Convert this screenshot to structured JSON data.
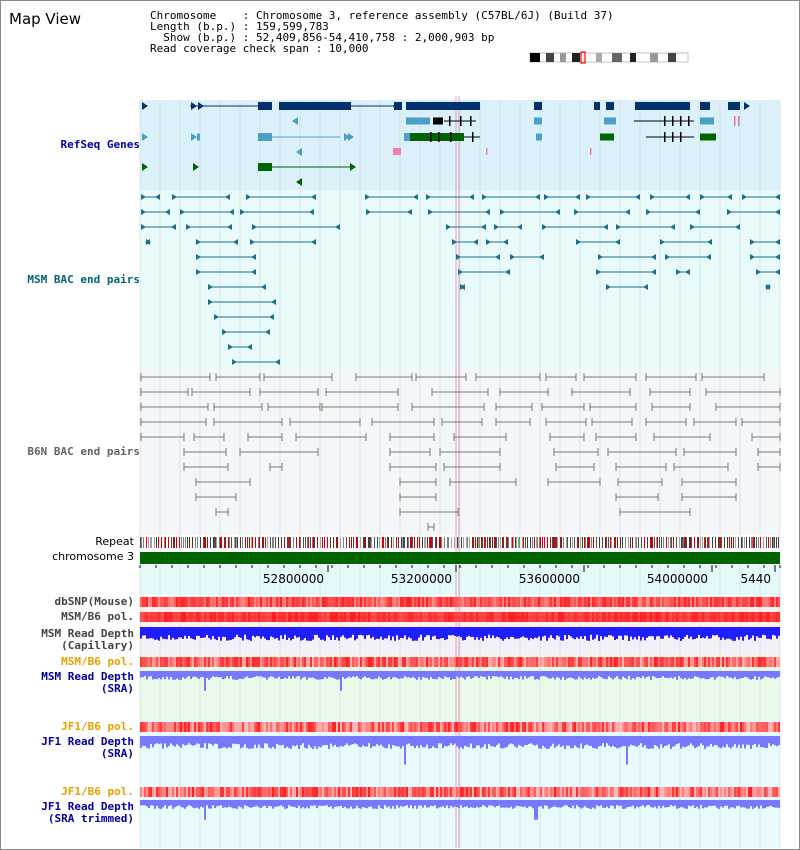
{
  "header": {
    "title": "Map View",
    "chromosome_line": "Chromosome    : Chromosome 3, reference assembly (C57BL/6J) (Build 37)",
    "length_line": "Length (b.p.) : 159,599,783",
    "show_line": "  Show (b.p.) : 52,409,856-54,410,758 : 2,000,903 bp",
    "coverage_line": "Read coverage check span : 10,000"
  },
  "tracks": {
    "refseq": "RefSeq Genes",
    "msm_bac": "MSM BAC end pairs",
    "b6n_bac": "B6N BAC end pairs",
    "repeat": "Repeat",
    "chromosome": "chromosome 3",
    "dbsnp": "dbSNP(Mouse)",
    "msm_b6_pol_1": "MSM/B6 pol.",
    "msm_depth_cap_1": "MSM Read Depth",
    "msm_depth_cap_2": "(Capillary)",
    "msm_b6_pol_2": "MSM/B6 pol.",
    "msm_depth_sra_1": "MSM Read Depth",
    "msm_depth_sra_2": "(SRA)",
    "jf1_b6_pol": "JF1/B6 pol.",
    "jf1_depth_sra_1": "JF1 Read Depth",
    "jf1_depth_sra_2": "(SRA)",
    "jf1_b6_pol_2": "JF1/B6 pol.",
    "jf1_depth_trim_1": "JF1 Read Depth",
    "jf1_depth_trim_2": "(SRA trimmed)"
  },
  "ruler": {
    "ticks": [
      "52800000",
      "53200000",
      "53600000",
      "54000000",
      "5440"
    ]
  },
  "colors": {
    "refseq_bg": "#dcf0fa",
    "msm_bg": "#e8fafa",
    "b6n_bg": "#f4f6f8",
    "dark_navy": "#05326e",
    "refseq_light": "#4aa0c8",
    "refseq_green": "#006400",
    "msm_bac": "#1e6e8c",
    "b6n_bac": "#787878",
    "chromosome_bar": "#006400",
    "depth_dark_blue": "#1e1eff",
    "depth_light_blue": "#7878ff",
    "label_navy": "#0000a0",
    "label_orange": "#e6a000",
    "label_gray": "#444444"
  }
}
